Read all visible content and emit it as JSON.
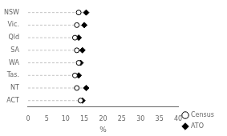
{
  "chart_data": {
    "type": "dot",
    "orientation": "horizontal",
    "categories": [
      "NSW",
      "Vic.",
      "Qld",
      "SA",
      "WA",
      "Tas.",
      "NT",
      "ACT"
    ],
    "series": [
      {
        "name": "ATO",
        "color": "black",
        "marker": "diamond",
        "values": [
          15.5,
          15.0,
          13.5,
          14.5,
          14.0,
          13.5,
          15.5,
          14.5
        ]
      },
      {
        "name": "Census",
        "color": "white",
        "marker": "circle",
        "values": [
          13.5,
          13.0,
          12.5,
          13.0,
          13.5,
          12.5,
          13.0,
          14.0
        ]
      }
    ],
    "xlabel": "%",
    "xlim": [
      0,
      40
    ],
    "xticks": [
      0,
      5,
      10,
      15,
      20,
      25,
      30,
      35,
      40
    ],
    "legend": "lower right",
    "grid": false
  }
}
